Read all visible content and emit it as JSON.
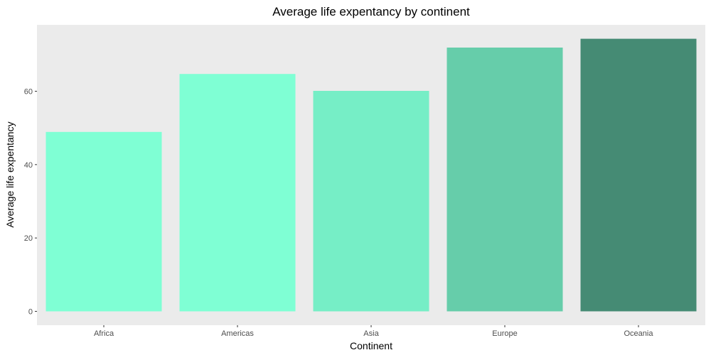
{
  "chart_data": {
    "type": "bar",
    "title": "Average life expentancy by continent",
    "xlabel": "Continent",
    "ylabel": "Average life expentancy",
    "categories": [
      "Africa",
      "Americas",
      "Asia",
      "Europe",
      "Oceania"
    ],
    "values": [
      48.9,
      64.7,
      60.1,
      71.9,
      74.3
    ],
    "colors": [
      "#7fffd4",
      "#7fffd4",
      "#76eec6",
      "#66cdaa",
      "#458b74"
    ],
    "ylim": [
      0,
      78
    ],
    "yticks": [
      0,
      20,
      40,
      60
    ],
    "ytick_labels": [
      "0",
      "20",
      "40",
      "60"
    ],
    "grid": false,
    "panel_background": "#ebebeb",
    "legend": "none"
  }
}
